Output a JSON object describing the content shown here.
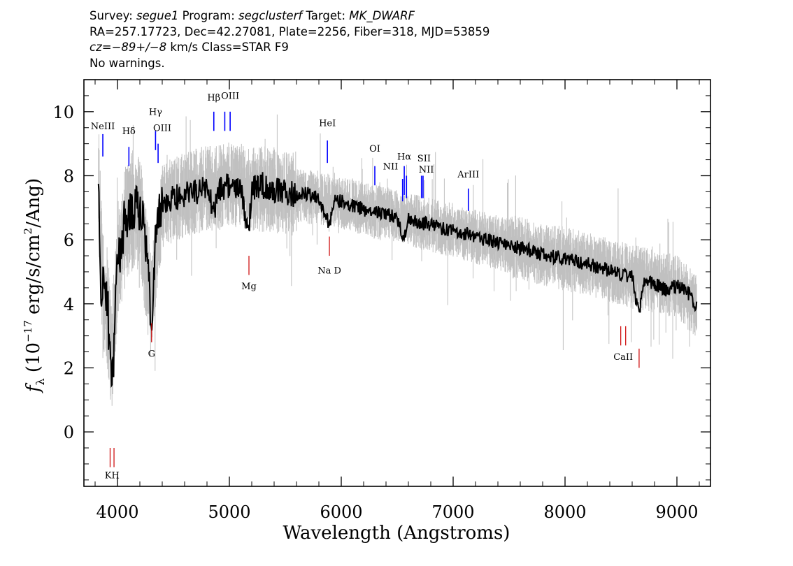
{
  "header": {
    "line1": {
      "survey_label": "Survey:",
      "survey": "segue1",
      "program_label": "Program:",
      "program": "segclusterf",
      "target_label": "Target:",
      "target": "MK_DWARF"
    },
    "line2": "RA=257.17723, Dec=42.27081, Plate=2256, Fiber=318, MJD=53859",
    "line3": {
      "cz_label": "cz=",
      "cz_value": "−89+/−8",
      "rest": " km/s Class=STAR F9"
    },
    "line4": "No warnings."
  },
  "chart_data": {
    "type": "line",
    "title": "",
    "xlabel": "Wavelength (Angstroms)",
    "ylabel": "f_λ (10^-17 erg/s/cm^2/Ang)",
    "ylabel_parts": {
      "f": "f",
      "sub": "λ",
      "pre": " (10",
      "exp": "−17",
      "mid": " erg/s/cm",
      "exp2": "2",
      "post": "/Ang)"
    },
    "xlim": [
      3700,
      9300
    ],
    "ylim": [
      -1.7,
      11.0
    ],
    "xticks": [
      4000,
      5000,
      6000,
      7000,
      8000,
      9000
    ],
    "yticks": [
      0,
      2,
      4,
      6,
      8,
      10
    ],
    "colors": {
      "flux": "#000000",
      "noisy": "#c0c0c0",
      "emission": "#0000ff",
      "absorption": "#cc0000"
    },
    "series": [
      {
        "role": "smoothed flux",
        "x": [
          3830,
          3850,
          3870,
          3890,
          3910,
          3930,
          3950,
          3965,
          3980,
          4000,
          4030,
          4060,
          4100,
          4150,
          4200,
          4250,
          4300,
          4320,
          4340,
          4400,
          4500,
          4600,
          4700,
          4800,
          4860,
          4900,
          5000,
          5100,
          5175,
          5200,
          5300,
          5400,
          5500,
          5600,
          5700,
          5800,
          5893,
          5950,
          6000,
          6100,
          6200,
          6300,
          6400,
          6500,
          6563,
          6600,
          6700,
          6800,
          6900,
          7000,
          7200,
          7400,
          7600,
          7800,
          8000,
          8200,
          8400,
          8500,
          8600,
          8662,
          8700,
          8800,
          8900,
          9000,
          9100,
          9180
        ],
        "y": [
          7.9,
          4.2,
          4.5,
          4.3,
          4.1,
          2.5,
          1.5,
          1.8,
          4.5,
          5.3,
          5.8,
          6.5,
          6.9,
          7.1,
          6.9,
          6.2,
          3.5,
          4.2,
          6.6,
          7.1,
          7.3,
          7.4,
          7.5,
          7.6,
          6.8,
          7.6,
          7.7,
          7.5,
          6.2,
          7.6,
          7.7,
          7.55,
          7.5,
          7.4,
          7.45,
          7.3,
          6.5,
          7.25,
          7.2,
          7.05,
          6.95,
          6.85,
          6.8,
          6.7,
          6.0,
          6.65,
          6.55,
          6.45,
          6.35,
          6.3,
          6.1,
          5.9,
          5.75,
          5.55,
          5.4,
          5.25,
          5.05,
          4.9,
          4.85,
          3.6,
          4.7,
          4.6,
          4.45,
          4.55,
          4.35,
          3.9
        ]
      },
      {
        "role": "noisy flux",
        "x": [
          3830,
          3870,
          3900,
          3950,
          4000,
          4100,
          4200,
          4300,
          4400,
          4600,
          4800,
          5000,
          5200,
          5400,
          5600,
          5800,
          6000,
          6200,
          6400,
          6600,
          6800,
          7000,
          7400,
          7800,
          8200,
          8600,
          9000,
          9180
        ],
        "y": [
          7.9,
          4.4,
          4.2,
          2.2,
          5.3,
          6.9,
          6.9,
          4.0,
          7.1,
          7.4,
          7.6,
          7.7,
          7.6,
          7.55,
          7.4,
          7.3,
          7.2,
          6.95,
          6.8,
          6.65,
          6.45,
          6.3,
          5.9,
          5.55,
          5.25,
          4.85,
          4.55,
          3.9
        ]
      }
    ],
    "emission_lines": [
      {
        "name": "NeIII",
        "wavelength": 3869
      },
      {
        "name": "Hδ",
        "wavelength": 4102
      },
      {
        "name": "Hγ",
        "wavelength": 4340
      },
      {
        "name": "OIII",
        "wavelength": 4363
      },
      {
        "name": "Hβ",
        "wavelength": 4861
      },
      {
        "name": "OIII",
        "wavelength": 4959
      },
      {
        "name": "OIII",
        "wavelength": 5007
      },
      {
        "name": "HeI",
        "wavelength": 5876
      },
      {
        "name": "OI",
        "wavelength": 6300
      },
      {
        "name": "NII",
        "wavelength": 6548
      },
      {
        "name": "Hα",
        "wavelength": 6563
      },
      {
        "name": "NII",
        "wavelength": 6583
      },
      {
        "name": "SII",
        "wavelength": 6717
      },
      {
        "name": "SII",
        "wavelength": 6731
      },
      {
        "name": "ArIII",
        "wavelength": 7136
      }
    ],
    "absorption_lines": [
      {
        "name": "K",
        "wavelength": 3934
      },
      {
        "name": "H",
        "wavelength": 3969
      },
      {
        "name": "G",
        "wavelength": 4305
      },
      {
        "name": "Mg",
        "wavelength": 5175
      },
      {
        "name": "Na D",
        "wavelength": 5894
      },
      {
        "name": "CaII",
        "wavelength": 8498
      },
      {
        "name": "CaII",
        "wavelength": 8542
      },
      {
        "name": "CaII",
        "wavelength": 8662
      }
    ],
    "line_labels": {
      "NeIII": "NeIII",
      "Hd": "Hδ",
      "Hg": "Hγ",
      "OIII_a": "OIII",
      "Hb": "Hβ",
      "OIII_b": "OIII",
      "HeI": "HeI",
      "OI": "OI",
      "NII_a": "NII",
      "Ha": "Hα",
      "SII": "SII",
      "NII_b": "NII",
      "ArIII": "ArIII",
      "KH": "KH",
      "G": "G",
      "Mg": "Mg",
      "NaD": "Na  D",
      "CaII": "CaII"
    }
  }
}
